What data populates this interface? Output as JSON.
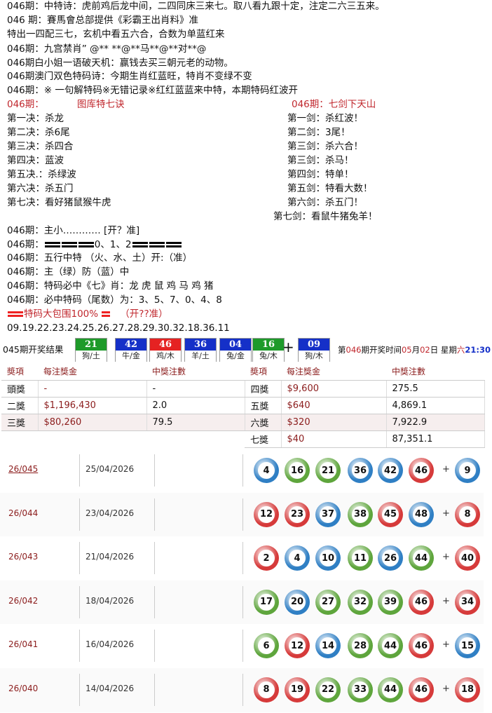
{
  "lines_top": [
    "046期：中特诗：虎前鸡后龙中间，二四同床三来七。取八看九跟十定，注定二六三五来。",
    "046 期：賽馬會总部提供《彩霸王出肖料》准",
    "特出一四配三七，玄机中看五六合，合数为单蓝红来",
    "046期：九宫禁肖” @** **@**马**@**对**@",
    "046期白小姐一语破天机：赢钱去买三朝元老的动物。",
    "046期澳门双色特码诗：今期生肖红蓝旺，特肖不变绿不变",
    "046期：※ 一句解特码※无错记录※红红蓝蓝来中特，本期特码红波开"
  ],
  "left_block": {
    "prefix": "046期：",
    "title": "图库特七诀",
    "items": [
      "第一决：杀龙",
      "第二决：杀6尾",
      "第三决：杀四合",
      "第四决：蓝波",
      "第五决.：杀绿波",
      "第六决：杀五门",
      "第七决：看好猪鼠猴牛虎"
    ]
  },
  "right_block": {
    "title": "046期：七剑下天山",
    "items": [
      "第一剑：杀红波！",
      "第二剑：3尾！",
      "第三剑：杀六合！",
      "第三剑：杀马！",
      "第四剑：特单！",
      "第五剑：特看大数！",
      "第六剑：杀五门！",
      "第七剑：看鼠牛猪兔羊！"
    ]
  },
  "lines_mid": [
    "046期：主小………… [开？准]",
    "046期：",
    "046期：五行中特 （火、水、土）开:（准）",
    "046期：主（绿）防（蓝）中",
    "046期：特码必中《七》肖：龙 虎 鼠 鸡 马 鸡 猪",
    "046期：必中特码（尾数）为：3、5、7、0、4、8"
  ],
  "mid_numbers": "0、1、2",
  "baowei": {
    "label": "特码大包围100%",
    "tail": "（开??准）"
  },
  "number_list": "09.19.22.23.24.25.26.27.28.29.30.32.18.36.11",
  "result": {
    "label": "045期开奖结果",
    "balls": [
      {
        "n": "21",
        "a": "狗/土",
        "c": "#1e9a2a"
      },
      {
        "n": "42",
        "a": "牛/金",
        "c": "#1530c8"
      },
      {
        "n": "46",
        "a": "鸡/木",
        "c": "#e52222"
      },
      {
        "n": "36",
        "a": "羊/土",
        "c": "#1530c8"
      },
      {
        "n": "04",
        "a": "兔/金",
        "c": "#1530c8"
      },
      {
        "n": "16",
        "a": "兔/木",
        "c": "#1e9a2a"
      }
    ],
    "plus": "+",
    "special": {
      "n": "09",
      "a": "狗/木",
      "c": "#1530c8"
    },
    "next": {
      "p1": "第",
      "period": "046",
      "p2": "期开奖时间",
      "month": "05",
      "p3": "月",
      "day": "02",
      "p4": "日 星期",
      "weekday": "六",
      "time": "21:30"
    }
  },
  "prize_table": {
    "headers": [
      "奬項",
      "每注獎金",
      "中獎注數",
      "奬項",
      "每注獎金",
      "中獎注數"
    ],
    "rows": [
      [
        "頭獎",
        "-",
        "-",
        "四獎",
        "$9,600",
        "275.5"
      ],
      [
        "二獎",
        "$1,196,430",
        "2.0",
        "五獎",
        "$640",
        "4,869.1"
      ],
      [
        "三獎",
        "$80,260",
        "79.5",
        "六獎",
        "$320",
        "7,922.9"
      ],
      [
        "",
        "",
        "",
        "七獎",
        "$40",
        "87,351.1"
      ]
    ]
  },
  "history": [
    {
      "period": "26/045",
      "date": "25/04/2026",
      "balls": [
        [
          "4",
          "blue"
        ],
        [
          "16",
          "green"
        ],
        [
          "21",
          "green"
        ],
        [
          "36",
          "blue"
        ],
        [
          "42",
          "blue"
        ],
        [
          "46",
          "red"
        ]
      ],
      "special": [
        "9",
        "blue"
      ]
    },
    {
      "period": "26/044",
      "date": "23/04/2026",
      "balls": [
        [
          "12",
          "red"
        ],
        [
          "23",
          "red"
        ],
        [
          "37",
          "blue"
        ],
        [
          "38",
          "green"
        ],
        [
          "45",
          "red"
        ],
        [
          "48",
          "blue"
        ]
      ],
      "special": [
        "8",
        "red"
      ]
    },
    {
      "period": "26/043",
      "date": "21/04/2026",
      "balls": [
        [
          "2",
          "red"
        ],
        [
          "4",
          "blue"
        ],
        [
          "10",
          "blue"
        ],
        [
          "11",
          "green"
        ],
        [
          "26",
          "blue"
        ],
        [
          "44",
          "green"
        ]
      ],
      "special": [
        "40",
        "red"
      ]
    },
    {
      "period": "26/042",
      "date": "18/04/2026",
      "balls": [
        [
          "17",
          "green"
        ],
        [
          "20",
          "blue"
        ],
        [
          "27",
          "green"
        ],
        [
          "32",
          "green"
        ],
        [
          "39",
          "green"
        ],
        [
          "46",
          "red"
        ]
      ],
      "special": [
        "34",
        "red"
      ]
    },
    {
      "period": "26/041",
      "date": "16/04/2026",
      "balls": [
        [
          "6",
          "green"
        ],
        [
          "12",
          "red"
        ],
        [
          "14",
          "blue"
        ],
        [
          "28",
          "green"
        ],
        [
          "44",
          "green"
        ],
        [
          "46",
          "red"
        ]
      ],
      "special": [
        "15",
        "blue"
      ]
    },
    {
      "period": "26/040",
      "date": "14/04/2026",
      "balls": [
        [
          "8",
          "red"
        ],
        [
          "19",
          "red"
        ],
        [
          "22",
          "green"
        ],
        [
          "33",
          "green"
        ],
        [
          "44",
          "green"
        ],
        [
          "46",
          "red"
        ]
      ],
      "special": [
        "18",
        "red"
      ]
    }
  ],
  "plus_sign": "+",
  "ball_colors": {
    "red": "#d63a3a",
    "blue": "#2f7fc4",
    "green": "#5ea53c"
  }
}
